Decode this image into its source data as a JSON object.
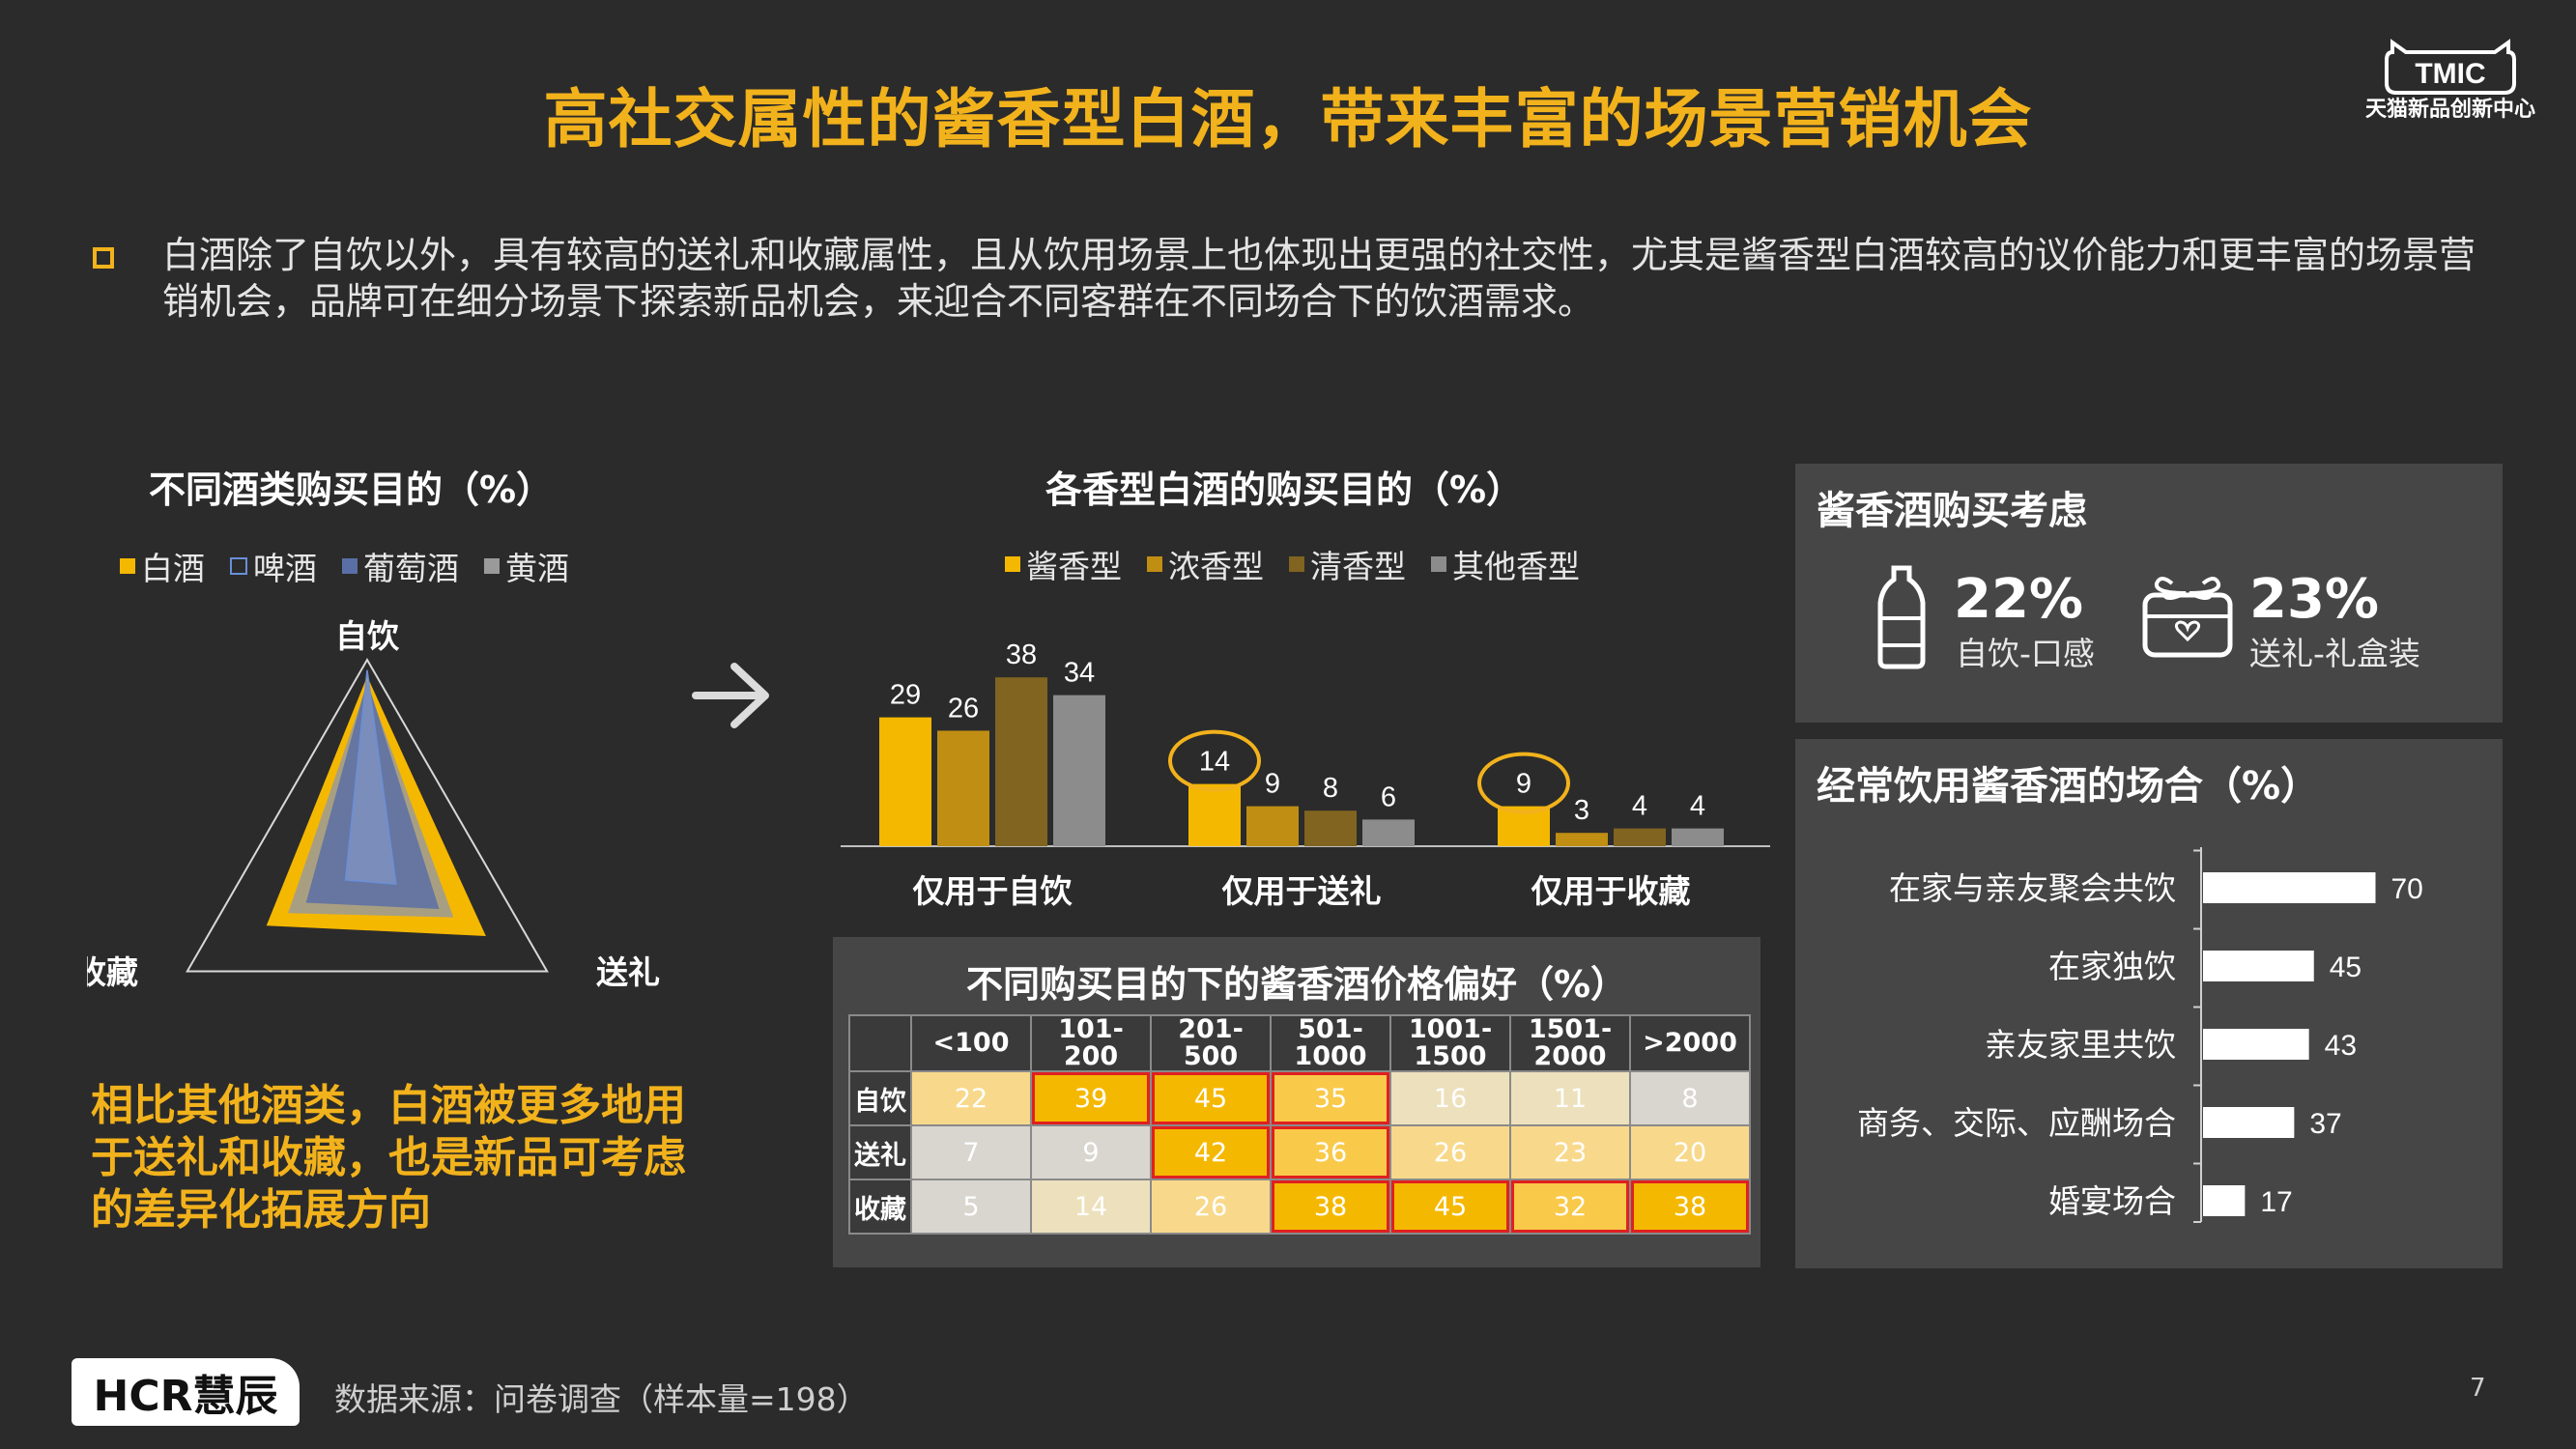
{
  "header": {
    "title": "高社交属性的酱香型白酒，带来丰富的场景营销机会",
    "logo_text": "TMIC",
    "logo_subtitle": "天猫新品创新中心"
  },
  "intro": "白酒除了自饮以外，具有较高的送礼和收藏属性，且从饮用场景上也体现出更强的社交性，尤其是酱香型白酒较高的议价能力和更丰富的场景营销机会，品牌可在细分场景下探索新品机会，来迎合不同客群在不同场合下的饮酒需求。",
  "conclusion": "相比其他酒类，白酒被更多地用于送礼和收藏，也是新品可考虑的差异化拓展方向",
  "colors": {
    "accent": "#f2b21c",
    "background": "#2b2b2b",
    "panel": "#464646",
    "highlight_border": "#e02020"
  },
  "consider": {
    "title": "酱香酒购买考虑",
    "items": [
      {
        "pct": "22%",
        "label": "自饮-口感",
        "icon": "bottle-icon"
      },
      {
        "pct": "23%",
        "label": "送礼-礼盒装",
        "icon": "gift-box-icon"
      }
    ]
  },
  "chart_data": [
    {
      "type": "radar",
      "title": "不同酒类购买目的（%）",
      "axes": [
        "自饮",
        "送礼",
        "收藏"
      ],
      "series": [
        {
          "name": "白酒",
          "values": [
            92,
            66,
            56
          ]
        },
        {
          "name": "啤酒",
          "values": [
            95,
            16,
            12
          ]
        },
        {
          "name": "葡萄酒",
          "values": [
            90,
            40,
            34
          ]
        },
        {
          "name": "黄酒",
          "values": [
            88,
            48,
            44
          ]
        }
      ],
      "colors": [
        "#f5b800",
        "#ffffff",
        "#5a6fa6",
        "#9a9a9a"
      ]
    },
    {
      "type": "bar",
      "title": "各香型白酒的购买目的（%）",
      "categories": [
        "仅用于自饮",
        "仅用于送礼",
        "仅用于收藏"
      ],
      "series": [
        {
          "name": "酱香型",
          "values": [
            29,
            14,
            9
          ]
        },
        {
          "name": "浓香型",
          "values": [
            26,
            9,
            3
          ]
        },
        {
          "name": "清香型",
          "values": [
            38,
            8,
            4
          ]
        },
        {
          "name": "其他香型",
          "values": [
            34,
            6,
            4
          ]
        }
      ],
      "colors": [
        "#f5b800",
        "#bf8e12",
        "#806420",
        "#8c8c8c"
      ],
      "circled": [
        [
          0,
          1
        ],
        [
          0,
          2
        ]
      ]
    },
    {
      "type": "table",
      "title": "不同购买目的下的酱香酒价格偏好（%）",
      "columns": [
        "<100",
        "101-200",
        "201-500",
        "501-1000",
        "1001-1500",
        "1501-2000",
        ">2000"
      ],
      "rows": [
        {
          "name": "自饮",
          "values": [
            22,
            39,
            45,
            35,
            16,
            11,
            8
          ]
        },
        {
          "name": "送礼",
          "values": [
            7,
            9,
            42,
            36,
            26,
            23,
            20
          ]
        },
        {
          "name": "收藏",
          "values": [
            5,
            14,
            26,
            38,
            45,
            32,
            38
          ]
        }
      ],
      "highlight": [
        [
          0,
          [
            1,
            2,
            3
          ]
        ],
        [
          1,
          [
            2,
            3
          ]
        ],
        [
          2,
          [
            3,
            4,
            5,
            6
          ]
        ]
      ]
    },
    {
      "type": "bar",
      "orientation": "horizontal",
      "title": "经常饮用酱香酒的场合（%）",
      "categories": [
        "在家与亲友聚会共饮",
        "在家独饮",
        "亲友家里共饮",
        "商务、交际、应酬场合",
        "婚宴场合"
      ],
      "values": [
        70,
        45,
        43,
        37,
        17
      ],
      "color": "#ffffff"
    }
  ],
  "footer": {
    "logo": "HCR慧辰",
    "source": "数据来源：问卷调查（样本量=198）",
    "page": "7"
  }
}
